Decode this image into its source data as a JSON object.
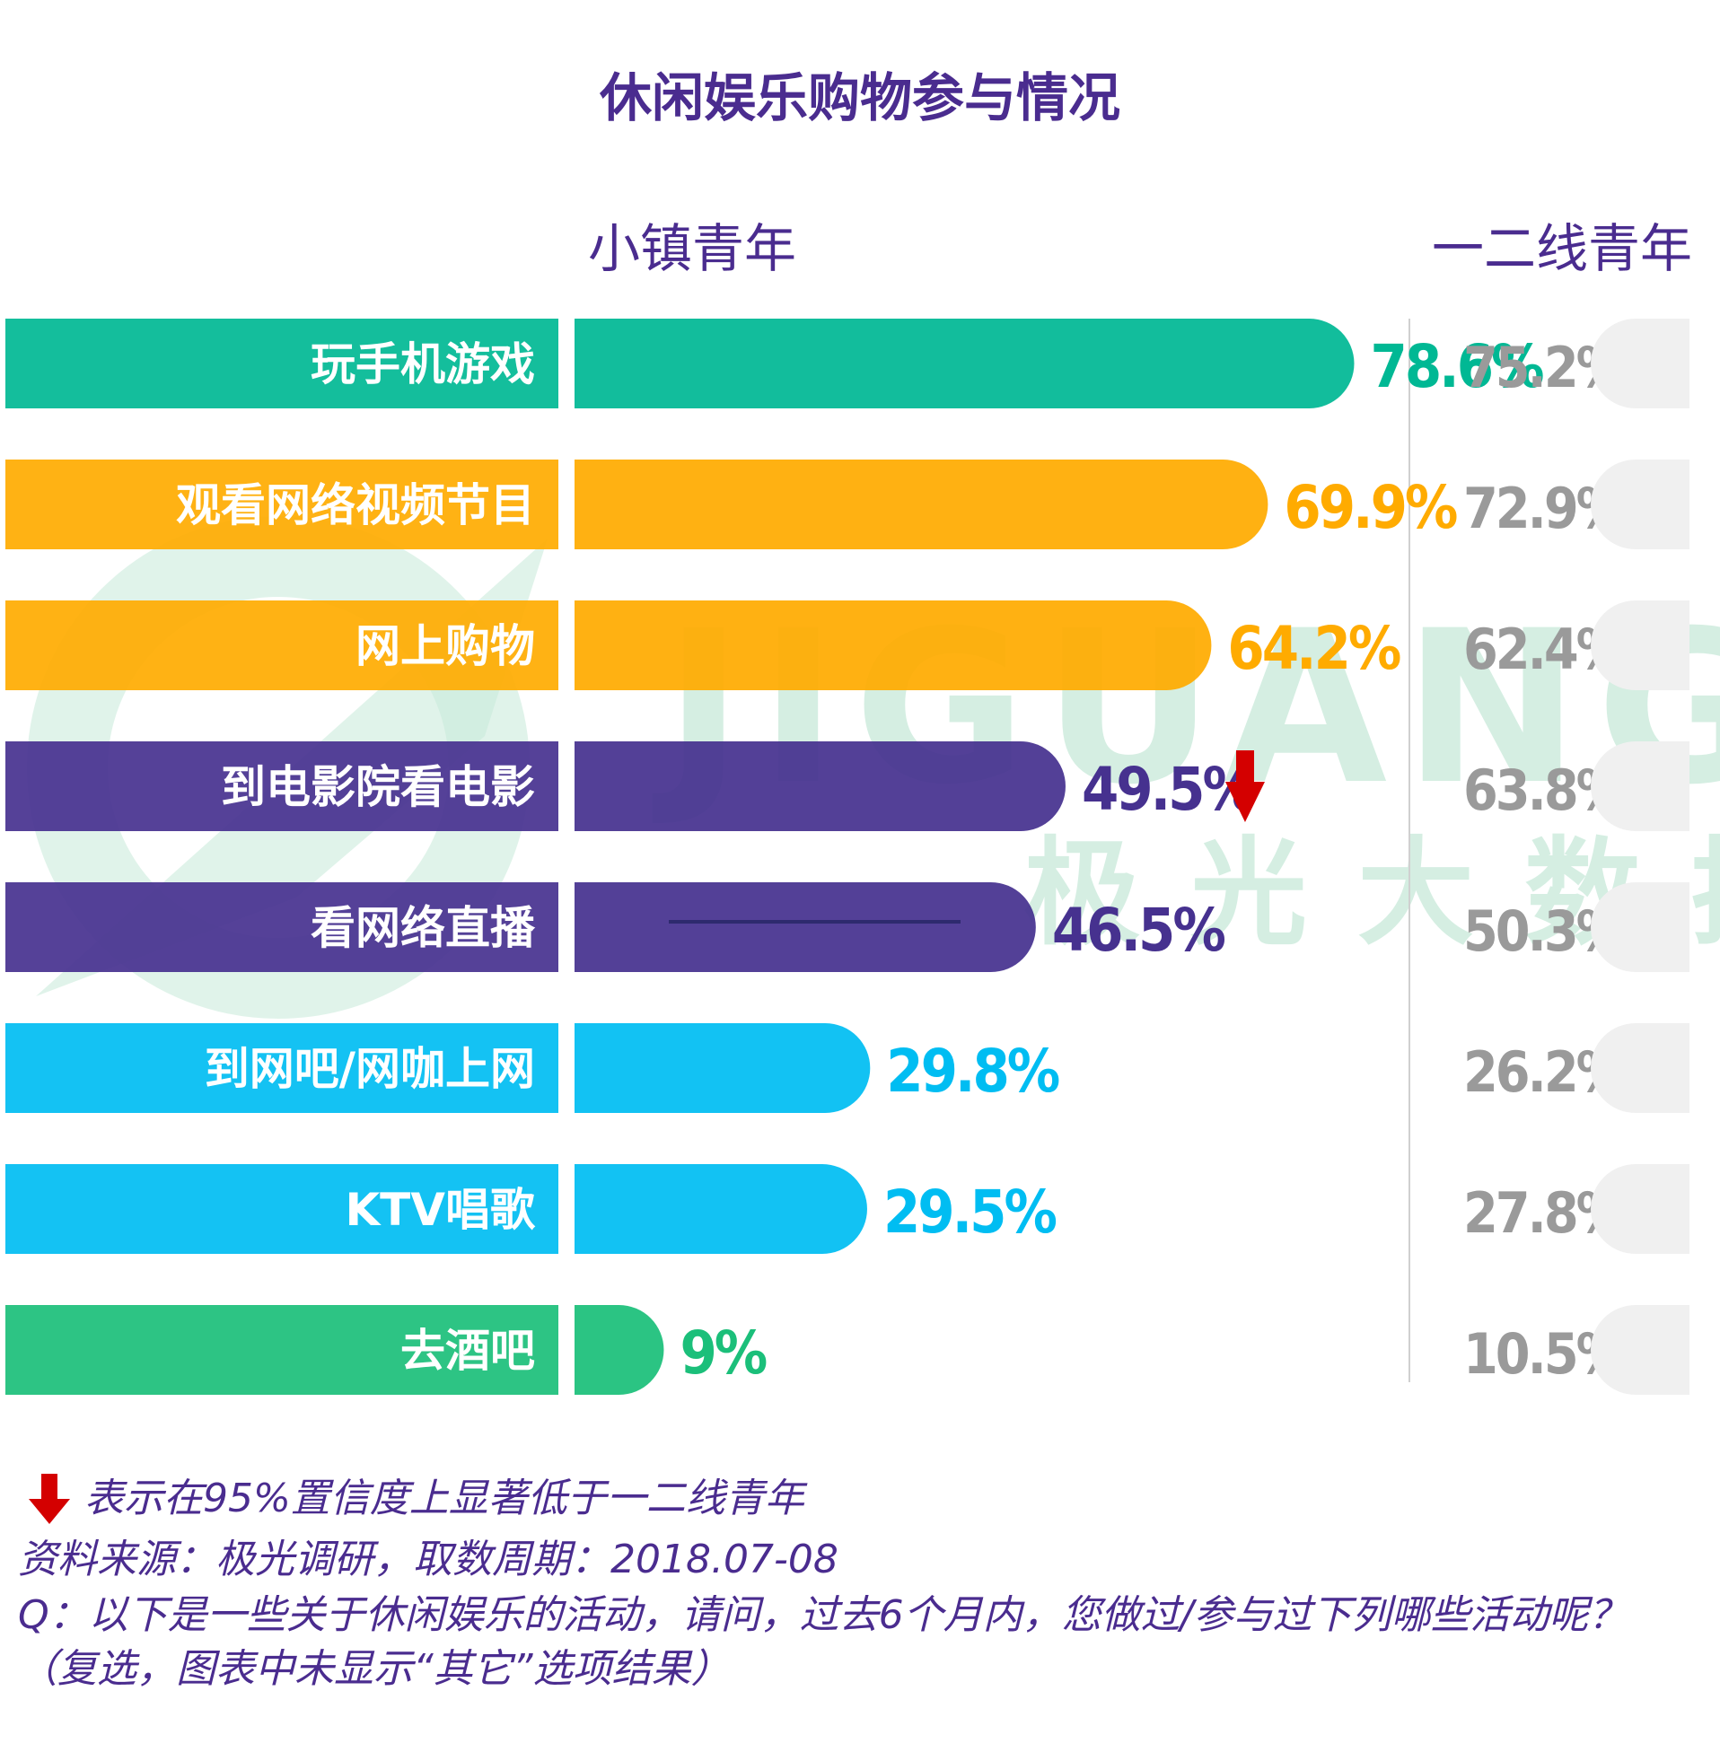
{
  "chart_data": {
    "type": "bar",
    "title": "休闲娱乐购物参与情况",
    "series_names": [
      "小镇青年",
      "一二线青年"
    ],
    "categories": [
      "玩手机游戏",
      "观看网络视频节目",
      "网上购物",
      "到电影院看电影",
      "看网络直播",
      "到网吧/网咖上网",
      "KTV唱歌",
      "去酒吧"
    ],
    "series": [
      {
        "name": "小镇青年",
        "values": [
          78.6,
          69.9,
          64.2,
          49.5,
          46.5,
          29.8,
          29.5,
          9
        ],
        "labels": [
          "78.6%",
          "69.9%",
          "64.2%",
          "49.5%",
          "46.5%",
          "29.8%",
          "29.5%",
          "9%"
        ]
      },
      {
        "name": "一二线青年",
        "values": [
          75.2,
          72.9,
          62.4,
          63.8,
          50.3,
          26.2,
          27.8,
          10.5
        ],
        "labels": [
          "75.2%",
          "72.9%",
          "62.4%",
          "63.8%",
          "50.3%",
          "26.2%",
          "27.8%",
          "10.5%"
        ]
      }
    ],
    "significantly_lower": [
      false,
      false,
      false,
      true,
      false,
      false,
      false,
      false
    ],
    "xlim": [
      0,
      100
    ],
    "xlabel": "",
    "ylabel": ""
  },
  "colors": {
    "title": "#4a2c8f",
    "green": "#00b894",
    "orange": "#ffab00",
    "purple": "#46318f",
    "cyan": "#00bdf2",
    "green2": "#1bbf7a",
    "gray_bar": "#f0f0f0",
    "gray_text": "#9a9a9a",
    "arrow": "#d40000"
  },
  "category_colors": [
    "green",
    "orange",
    "orange",
    "purple",
    "purple",
    "cyan",
    "cyan",
    "green2"
  ],
  "watermark": {
    "latin": "JIGUANG",
    "chinese": "极光大数据"
  },
  "footer": {
    "legend_text": "表示在95%置信度上显著低于一二线青年",
    "source": "资料来源：极光调研，取数周期：2018.07-08",
    "question": "Q：以下是一些关于休闲娱乐的活动，请问，过去6个月内，您做过/参与过下列哪些活动呢？（复选，图表中未显示“其它”选项结果）"
  }
}
